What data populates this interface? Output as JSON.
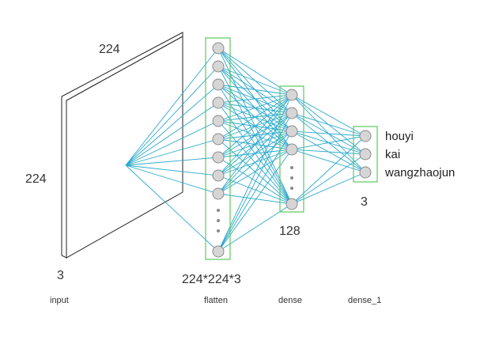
{
  "input_block": {
    "width_label": "224",
    "height_label": "224",
    "depth_label": "3"
  },
  "layers": [
    {
      "name": "input",
      "size_label": ""
    },
    {
      "name": "flatten",
      "size_label": "224*224*3"
    },
    {
      "name": "dense",
      "size_label": "128"
    },
    {
      "name": "dense_1",
      "size_label": "3"
    }
  ],
  "outputs": [
    "houyi",
    "kai",
    "wangzhaojun"
  ],
  "colors": {
    "connection": "#2aa9cc",
    "box_border": "#5cc95c",
    "node_fill": "#d6d6d6",
    "node_stroke": "#8a8a8a",
    "slab_stroke": "#222222"
  }
}
